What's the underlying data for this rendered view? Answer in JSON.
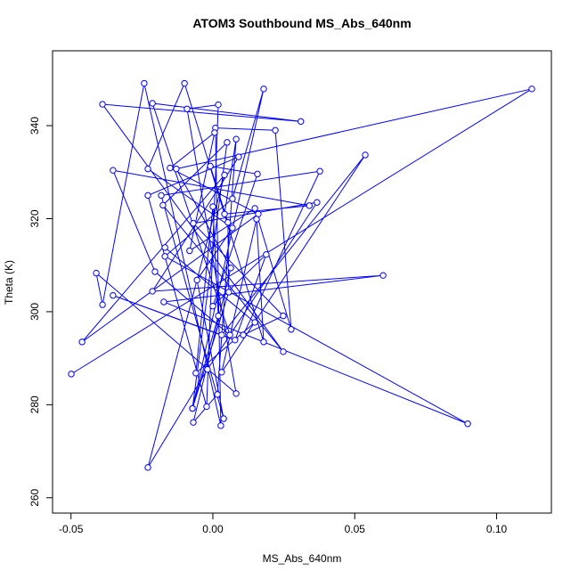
{
  "chart_data": {
    "type": "line",
    "title": "ATOM3 Southbound MS_Abs_640nm",
    "x_label": "MS_Abs_640nm",
    "y_label": "Theta (K)",
    "xlim": [
      -0.0565,
      0.1193
    ],
    "ylim": [
      256.7,
      356.1
    ],
    "xticks": [
      -0.05,
      {
        "value": 0,
        "label": "0.00"
      },
      0.05,
      {
        "value": 0.1,
        "label": "0.10"
      }
    ],
    "yticks": [
      260,
      280,
      300,
      320,
      340
    ],
    "series": [
      {
        "name": "MS_Abs_640nm",
        "color": "#0000ff",
        "x": [
          -0.0499,
          0.1124,
          -0.0129,
          0.0063,
          -0.0069,
          0.0016,
          0.0082,
          0.0041,
          0.034,
          -0.0352,
          -0.0204,
          0.006,
          -0.0213,
          0.031,
          -0.0389,
          0.0248,
          -0.0176,
          0.005,
          -0.0072,
          0.0179,
          0.0069,
          -0.0169,
          0.0898,
          -0.0173,
          0.06,
          -0.0213,
          0.0091,
          -0.0229,
          -0.0022,
          0.0019,
          -0.0091,
          0.0082,
          -0.0411,
          -0.0389,
          -0.0242,
          0.0028,
          0.0009,
          0.022,
          0.0276,
          0.0148,
          -0.0082,
          0.0006,
          -0.0151,
          0.016,
          -0.0461,
          0.0041,
          -0.0229,
          -0.0019,
          0.0367,
          -0.0069,
          0.0248,
          0.0107,
          0.0377,
          -0.0182,
          0.0038,
          -0.0056,
          0.0069,
          -0.0229,
          -0.01,
          0.0179,
          0.0154,
          0.0031,
          0.0537,
          0.0031,
          -0.0352,
          0.0078,
          0.0188,
          0.0,
          0.0157,
          -0.0009,
          0.0053,
          0.0056,
          -0.0072,
          0.0019,
          0.0,
          -0.006,
          0.0148,
          -0.0169
        ],
        "y": [
          286.6,
          347.9,
          330.7,
          309.4,
          276.2,
          282.2,
          337.1,
          321.0,
          322.8,
          330.4,
          308.6,
          295.0,
          344.8,
          340.9,
          344.6,
          291.4,
          322.9,
          336.4,
          279.2,
          347.9,
          324.3,
          311.9,
          275.9,
          302.1,
          307.8,
          304.4,
          333.3,
          325.0,
          279.6,
          344.5,
          343.6,
          282.4,
          308.3,
          301.5,
          349.1,
          275.5,
          339.5,
          339.0,
          296.2,
          322.2,
          313.1,
          338.5,
          330.9,
          321.0,
          293.5,
          329.4,
          266.5,
          287.6,
          323.5,
          319.0,
          299.1,
          295.0,
          330.2,
          325.0,
          277.0,
          306.8,
          318.0,
          330.7,
          349.1,
          293.5,
          319.9,
          287.0,
          333.7,
          295.0,
          303.5,
          293.9,
          312.3,
          301.2,
          329.6,
          331.3,
          319.2,
          304.2,
          279.2,
          299.1,
          322.6,
          286.8,
          297.7,
          313.8
        ]
      }
    ]
  }
}
